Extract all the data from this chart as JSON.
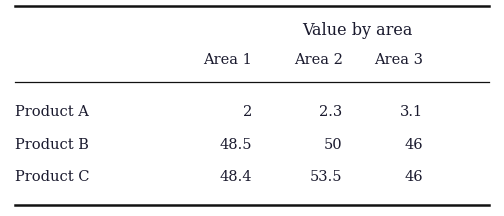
{
  "title": "Value by area",
  "col_headers": [
    "Area 1",
    "Area 2",
    "Area 3"
  ],
  "row_headers": [
    "Product A",
    "Product B",
    "Product C"
  ],
  "cell_values": [
    [
      "2",
      "2.3",
      "3.1"
    ],
    [
      "48.5",
      "50",
      "46"
    ],
    [
      "48.4",
      "53.5",
      "46"
    ]
  ],
  "bg_color": "#ffffff",
  "text_color": "#1a1a2e",
  "font_size": 10.5,
  "title_font_size": 11.5,
  "line_color": "#111111"
}
